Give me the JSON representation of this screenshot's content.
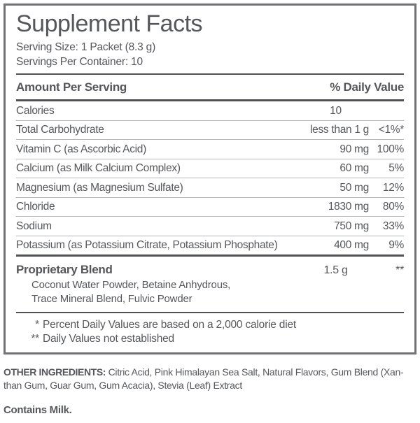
{
  "colors": {
    "text": "#55575b",
    "rule_dark": "#4e5054",
    "rule_light": "#b6b7b9",
    "panel_border": "#6f7174",
    "background": "#ffffff"
  },
  "label": {
    "title": "Supplement Facts",
    "serving_size": "Serving Size: 1 Packet (8.3 g)",
    "servings_per_container": "Servings Per Container: 10",
    "columns": {
      "amount_header": "Amount Per Serving",
      "dv_header": "% Daily Value"
    },
    "rows": [
      {
        "name": "Calories",
        "amount": "10",
        "dv": ""
      },
      {
        "name": "Total Carbohydrate",
        "amount": "less than 1 g",
        "dv": "<1%*"
      },
      {
        "name": "Vitamin C (as Ascorbic Acid)",
        "amount": "90 mg",
        "dv": "100%"
      },
      {
        "name": "Calcium (as Milk Calcium Complex)",
        "amount": "60 mg",
        "dv": "5%"
      },
      {
        "name": "Magnesium (as Magnesium Sulfate)",
        "amount": "50 mg",
        "dv": "12%"
      },
      {
        "name": "Chloride",
        "amount": "1830 mg",
        "dv": "80%"
      },
      {
        "name": "Sodium",
        "amount": "750 mg",
        "dv": "33%"
      },
      {
        "name": "Potassium (as Potassium Citrate, Potassium Phosphate)",
        "amount": "400 mg",
        "dv": "9%"
      }
    ],
    "proprietary_blend": {
      "name": "Proprietary Blend",
      "amount": "1.5 g",
      "dv": "**",
      "ingredients_line1": "Coconut Water Powder, Betaine Anhydrous,",
      "ingredients_line2": "Trace Mineral Blend, Fulvic Powder"
    },
    "footnotes": [
      {
        "mark": "*",
        "text": "Percent Daily Values are based on a 2,000 calorie diet"
      },
      {
        "mark": "**",
        "text": "Daily Values not established"
      }
    ]
  },
  "other_ingredients": {
    "label": "OTHER INGREDIENTS:",
    "line1": "Citric Acid, Pink Himalayan Sea Salt, Natural Flavors, Gum Blend (Xan-",
    "line2": "than Gum, Guar Gum, Gum Acacia), Stevia (Leaf) Extract"
  },
  "contains_statement": "Contains Milk."
}
